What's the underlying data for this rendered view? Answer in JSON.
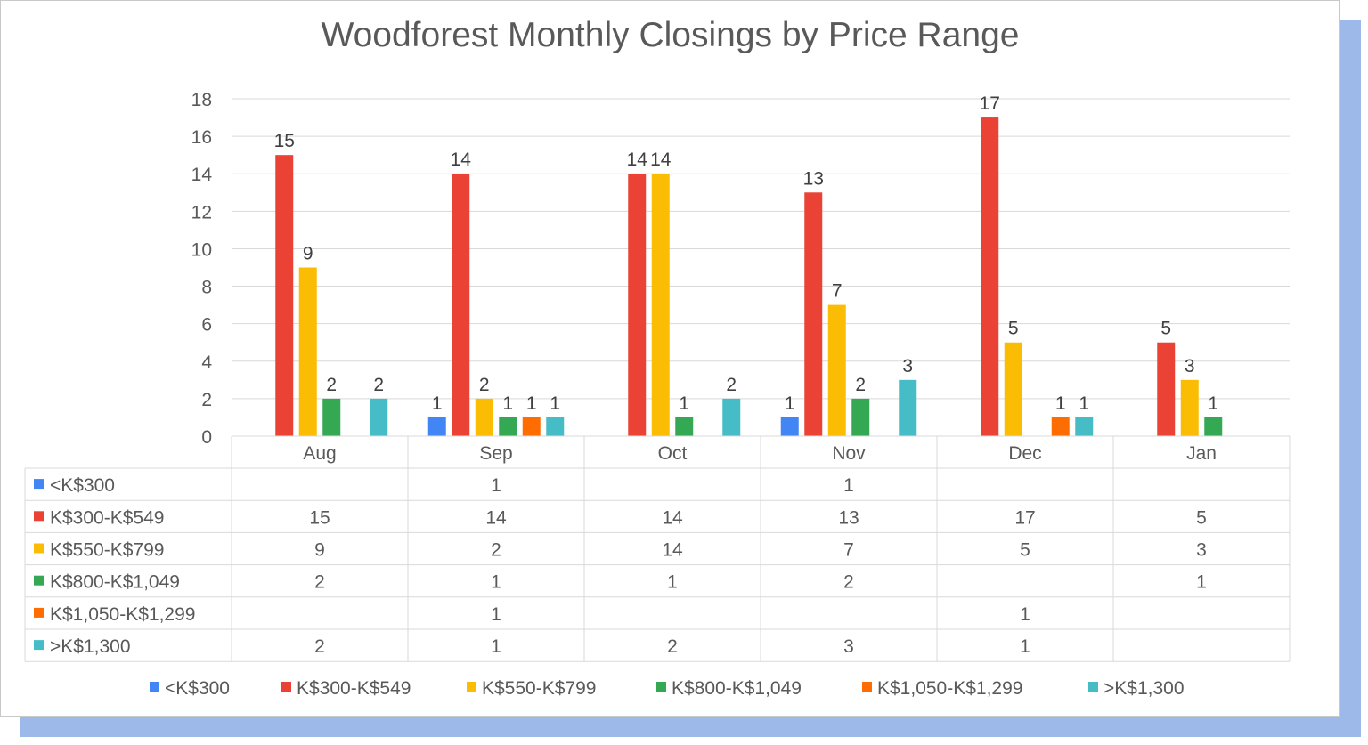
{
  "chart_data": {
    "type": "bar",
    "title": "Woodforest Monthly Closings by Price Range",
    "categories": [
      "Aug",
      "Sep",
      "Oct",
      "Nov",
      "Dec",
      "Jan"
    ],
    "ylim": [
      0,
      18
    ],
    "yticks": [
      0,
      2,
      4,
      6,
      8,
      10,
      12,
      14,
      16,
      18
    ],
    "grid": true,
    "legend": "bottom",
    "data_table": true,
    "series": [
      {
        "name": "<K$300",
        "color": "#4285f4",
        "values": [
          null,
          1,
          null,
          1,
          null,
          null
        ]
      },
      {
        "name": "K$300-K$549",
        "color": "#ea4335",
        "values": [
          15,
          14,
          14,
          13,
          17,
          5
        ]
      },
      {
        "name": "K$550-K$799",
        "color": "#fbbc04",
        "values": [
          9,
          2,
          14,
          7,
          5,
          3
        ]
      },
      {
        "name": "K$800-K$1,049",
        "color": "#34a853",
        "values": [
          2,
          1,
          1,
          2,
          null,
          1
        ]
      },
      {
        "name": "K$1,050-K$1,299",
        "color": "#ff6d01",
        "values": [
          null,
          1,
          null,
          null,
          1,
          null
        ]
      },
      {
        "name": ">K$1,300",
        "color": "#46bdc6",
        "values": [
          2,
          1,
          2,
          3,
          1,
          null
        ]
      }
    ]
  }
}
